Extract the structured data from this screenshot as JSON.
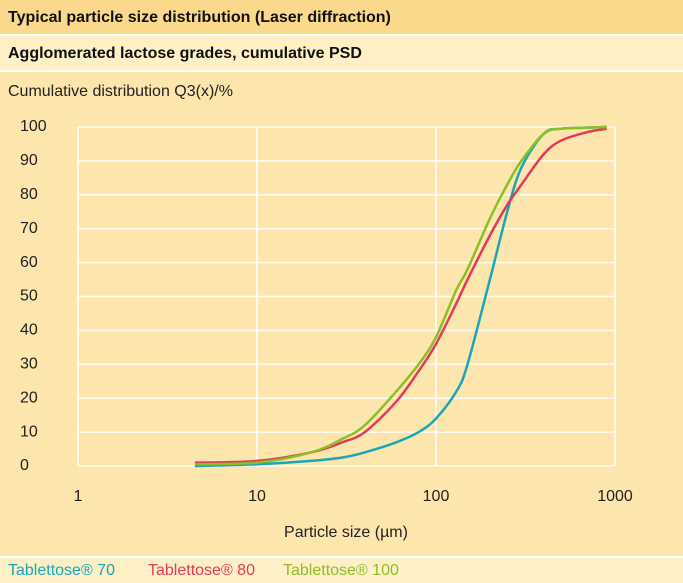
{
  "chart_data": {
    "type": "line",
    "title": "Typical particle size distribution (Laser diffraction)",
    "subtitle": "Agglomerated lactose grades, cumulative PSD",
    "y_label": "Cumulative distribution Q3(x)/%",
    "x_label": "Particle size (µm)",
    "x_scale": "log",
    "x": [
      4.5,
      10,
      20,
      30,
      40,
      60,
      80,
      100,
      130,
      150,
      200,
      250,
      300,
      400,
      500,
      700,
      900
    ],
    "series": [
      {
        "name": "Tablettose® 70",
        "color": "#1aa6b7",
        "values": [
          0,
          0.5,
          1.5,
          2.5,
          4,
          7,
          10,
          14,
          22,
          30,
          55,
          75,
          88,
          98,
          99.5,
          99.8,
          100
        ]
      },
      {
        "name": "Tablettose® 80",
        "color": "#e03c5a",
        "values": [
          1,
          1.5,
          4,
          7,
          10,
          19,
          28,
          36,
          48,
          55,
          68,
          77,
          83,
          92,
          96,
          98.5,
          99.5
        ]
      },
      {
        "name": "Tablettose® 100",
        "color": "#8cbf26",
        "values": [
          0.5,
          1,
          4,
          8,
          12,
          22,
          30,
          38,
          52,
          58,
          73,
          83,
          90,
          98,
          99.5,
          99.8,
          100
        ]
      }
    ],
    "xlim": [
      1,
      1000
    ],
    "xticks": [
      1,
      10,
      100,
      1000
    ],
    "ylim": [
      0,
      100
    ],
    "yticks": [
      0,
      10,
      20,
      30,
      40,
      50,
      60,
      70,
      80,
      90,
      100
    ],
    "grid": true
  }
}
